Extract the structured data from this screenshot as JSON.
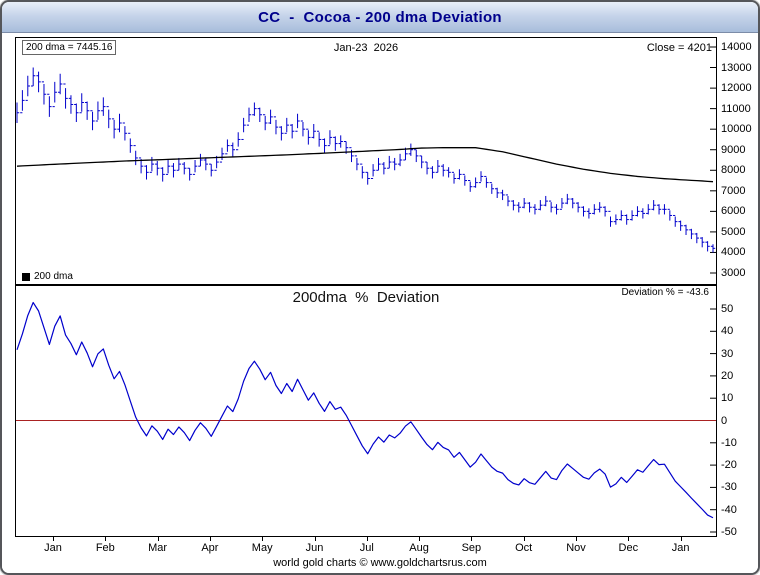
{
  "window": {
    "title": "CC  -  Cocoa - 200 dma Deviation"
  },
  "top_panel": {
    "dma_label": "200 dma = 7445.16",
    "date_label": "Jan-23  2026",
    "close_label": "Close = 4201",
    "legend": {
      "swatch_color": "#000000",
      "label": "200 dma"
    }
  },
  "bottom_panel": {
    "title": "200dma  %  Deviation",
    "deviation_label": "Deviation % = -43.6"
  },
  "footer": {
    "text": "world gold charts © www.goldchartsrus.com"
  },
  "colors": {
    "price_bars": "#0000cc",
    "dma_line": "#000000",
    "deviation_line": "#0000cc",
    "zero_line": "#aa2222",
    "title_text": "#00008c"
  },
  "chart_data": [
    {
      "type": "bar",
      "subtype": "daily high-low price bars with 200-day moving average overlay",
      "title": "CC - Cocoa price with 200 dma",
      "x_axis": {
        "tick_labels": [
          "Jan",
          "Feb",
          "Mar",
          "Apr",
          "May",
          "Jun",
          "Jul",
          "Aug",
          "Sep",
          "Oct",
          "Nov",
          "Dec",
          "Jan"
        ],
        "date_annotation": "Jan-23 2026"
      },
      "y_axis": {
        "min": 3000,
        "max": 14000,
        "side": "right",
        "ticks": [
          3000,
          4000,
          5000,
          6000,
          7000,
          8000,
          9000,
          10000,
          11000,
          12000,
          13000,
          14000
        ]
      },
      "annotations": {
        "dma_value": 7445.16,
        "close_value": 4201
      },
      "series": [
        {
          "name": "price",
          "type": "hilo-bar",
          "color": "#0000cc",
          "high": [
            11300,
            11900,
            12600,
            13000,
            12800,
            12200,
            11600,
            12300,
            12700,
            12000,
            11650,
            11250,
            11750,
            11350,
            10850,
            11350,
            11550,
            10950,
            10450,
            10750,
            10150,
            9550,
            8950,
            8550,
            8250,
            8650,
            8450,
            8150,
            8550,
            8350,
            8600,
            8400,
            8100,
            8500,
            8800,
            8600,
            8300,
            8700,
            9100,
            9500,
            9350,
            9850,
            10550,
            11050,
            11300,
            11050,
            10650,
            10950,
            10450,
            10150,
            10550,
            10250,
            10750,
            10350,
            9950,
            10250,
            9850,
            9550,
            9950,
            9650,
            9700,
            9400,
            9000,
            8600,
            8200,
            7900,
            8300,
            8600,
            8400,
            8700,
            8600,
            8800,
            9100,
            9300,
            9000,
            8700,
            8400,
            8200,
            8500,
            8300,
            8150,
            7850,
            8050,
            7750,
            7450,
            7650,
            7950,
            7650,
            7350,
            7150,
            7050,
            6750,
            6550,
            6450,
            6650,
            6450,
            6350,
            6550,
            6750,
            6450,
            6350,
            6650,
            6850,
            6650,
            6450,
            6250,
            6150,
            6350,
            6450,
            6250,
            5750,
            5850,
            6050,
            5850,
            6050,
            6250,
            6150,
            6350,
            6550,
            6350,
            6350,
            6050,
            5750,
            5550,
            5350,
            5150,
            4950,
            4750,
            4550,
            4400
          ],
          "low": [
            10300,
            10900,
            11600,
            12100,
            11800,
            11200,
            10600,
            11300,
            11700,
            11000,
            10750,
            10350,
            10850,
            10450,
            9950,
            10450,
            10650,
            10050,
            9550,
            9850,
            9450,
            8850,
            8250,
            7850,
            7550,
            7950,
            7750,
            7450,
            7850,
            7650,
            8000,
            7800,
            7500,
            7900,
            8200,
            8000,
            7700,
            8100,
            8500,
            8900,
            8650,
            9150,
            9850,
            10350,
            10650,
            10350,
            9950,
            10250,
            9750,
            9450,
            9850,
            9550,
            10050,
            9650,
            9250,
            9550,
            9150,
            8850,
            9250,
            8950,
            9100,
            8800,
            8400,
            8000,
            7600,
            7300,
            7700,
            8000,
            7800,
            8100,
            8000,
            8200,
            8500,
            8700,
            8400,
            8100,
            7800,
            7600,
            7900,
            7700,
            7650,
            7350,
            7550,
            7250,
            6950,
            7150,
            7450,
            7150,
            6850,
            6650,
            6550,
            6250,
            6050,
            5950,
            6150,
            5950,
            5850,
            6050,
            6250,
            5950,
            5850,
            6150,
            6350,
            6150,
            5950,
            5750,
            5650,
            5850,
            5950,
            5750,
            5250,
            5350,
            5550,
            5350,
            5550,
            5750,
            5650,
            5850,
            6050,
            5850,
            5850,
            5550,
            5250,
            5050,
            4850,
            4650,
            4450,
            4250,
            4050,
            4000
          ],
          "close": [
            10800,
            11400,
            12100,
            12600,
            12300,
            11700,
            11100,
            11800,
            12200,
            11500,
            11200,
            10800,
            11300,
            10900,
            10400,
            10900,
            11100,
            10500,
            10000,
            10300,
            9800,
            9200,
            8600,
            8200,
            7900,
            8300,
            8100,
            7800,
            8200,
            8000,
            8300,
            8100,
            7800,
            8200,
            8500,
            8300,
            8000,
            8400,
            8800,
            9200,
            9000,
            9500,
            10200,
            10700,
            11000,
            10700,
            10300,
            10600,
            10100,
            9800,
            10200,
            9900,
            10400,
            10000,
            9600,
            9900,
            9500,
            9200,
            9600,
            9300,
            9400,
            9100,
            8700,
            8300,
            7900,
            7600,
            8000,
            8300,
            8100,
            8400,
            8300,
            8500,
            8800,
            9000,
            8700,
            8400,
            8100,
            7900,
            8200,
            8000,
            7900,
            7600,
            7800,
            7500,
            7200,
            7400,
            7700,
            7400,
            7100,
            6900,
            6800,
            6500,
            6300,
            6200,
            6400,
            6200,
            6100,
            6300,
            6500,
            6200,
            6100,
            6400,
            6600,
            6400,
            6200,
            6000,
            5900,
            6100,
            6200,
            6000,
            5500,
            5600,
            5800,
            5600,
            5800,
            6000,
            5900,
            6100,
            6300,
            6100,
            6100,
            5800,
            5500,
            5300,
            5100,
            4900,
            4700,
            4500,
            4300,
            4201
          ]
        },
        {
          "name": "200 dma",
          "type": "line",
          "color": "#000000",
          "values": [
            8200,
            8215,
            8225,
            8240,
            8250,
            8265,
            8280,
            8290,
            8305,
            8315,
            8330,
            8340,
            8355,
            8365,
            8380,
            8390,
            8400,
            8415,
            8425,
            8440,
            8450,
            8460,
            8470,
            8480,
            8490,
            8500,
            8510,
            8520,
            8530,
            8540,
            8550,
            8560,
            8570,
            8580,
            8590,
            8600,
            8610,
            8620,
            8630,
            8640,
            8650,
            8660,
            8670,
            8680,
            8690,
            8700,
            8710,
            8720,
            8730,
            8740,
            8750,
            8760,
            8775,
            8785,
            8800,
            8810,
            8820,
            8835,
            8845,
            8860,
            8870,
            8885,
            8895,
            8910,
            8920,
            8935,
            8950,
            8960,
            8975,
            8985,
            9000,
            9015,
            9030,
            9050,
            9065,
            9080,
            9085,
            9090,
            9095,
            9100,
            9100,
            9100,
            9100,
            9100,
            9100,
            9100,
            9060,
            9020,
            8980,
            8940,
            8900,
            8840,
            8780,
            8720,
            8660,
            8600,
            8540,
            8480,
            8420,
            8360,
            8300,
            8250,
            8200,
            8150,
            8100,
            8050,
            8010,
            7970,
            7930,
            7890,
            7850,
            7820,
            7790,
            7760,
            7730,
            7700,
            7680,
            7655,
            7635,
            7610,
            7590,
            7575,
            7560,
            7540,
            7525,
            7510,
            7495,
            7480,
            7460,
            7445
          ]
        }
      ]
    },
    {
      "type": "line",
      "title": "200dma % Deviation",
      "y_axis": {
        "min": -50,
        "max": 50,
        "side": "right",
        "ticks": [
          -50,
          -40,
          -30,
          -20,
          -10,
          0,
          10,
          20,
          30,
          40,
          50
        ]
      },
      "reference_line": {
        "y": 0,
        "color": "#aa2222"
      },
      "last_value": -43.6,
      "series": [
        {
          "name": "deviation_pct",
          "color": "#0000cc",
          "values": [
            31.7,
            38.8,
            47.1,
            52.9,
            49.1,
            41.6,
            34.1,
            42.3,
            46.9,
            38.3,
            34.5,
            29.5,
            35.2,
            30.3,
            24.1,
            29.9,
            32.1,
            24.8,
            18.7,
            22.0,
            16.0,
            8.7,
            1.5,
            -3.3,
            -6.9,
            -2.4,
            -4.8,
            -8.5,
            -3.9,
            -6.3,
            -2.9,
            -5.4,
            -9.0,
            -4.4,
            -1.0,
            -3.5,
            -7.1,
            -2.6,
            2.0,
            6.5,
            4.0,
            9.7,
            17.6,
            23.3,
            26.6,
            23.0,
            18.3,
            21.6,
            15.7,
            12.1,
            16.6,
            13.0,
            18.5,
            13.8,
            9.1,
            12.4,
            7.7,
            4.1,
            8.5,
            5.0,
            6.0,
            2.4,
            -2.2,
            -6.8,
            -11.4,
            -14.9,
            -10.6,
            -7.4,
            -9.7,
            -6.5,
            -7.8,
            -5.7,
            -2.5,
            -0.6,
            -4.0,
            -7.5,
            -10.8,
            -13.1,
            -9.8,
            -12.1,
            -13.2,
            -16.5,
            -14.3,
            -17.6,
            -20.9,
            -18.7,
            -15.0,
            -18.0,
            -20.9,
            -22.8,
            -23.6,
            -26.5,
            -28.2,
            -28.9,
            -26.1,
            -27.9,
            -28.6,
            -25.7,
            -22.8,
            -25.8,
            -26.5,
            -22.4,
            -19.5,
            -21.5,
            -23.5,
            -25.5,
            -26.3,
            -23.5,
            -21.8,
            -24.0,
            -29.9,
            -28.4,
            -25.5,
            -27.8,
            -25.0,
            -22.1,
            -23.2,
            -20.3,
            -17.5,
            -19.8,
            -19.6,
            -23.4,
            -27.2,
            -29.7,
            -32.2,
            -34.8,
            -37.3,
            -39.8,
            -42.4,
            -43.6
          ]
        }
      ]
    }
  ]
}
